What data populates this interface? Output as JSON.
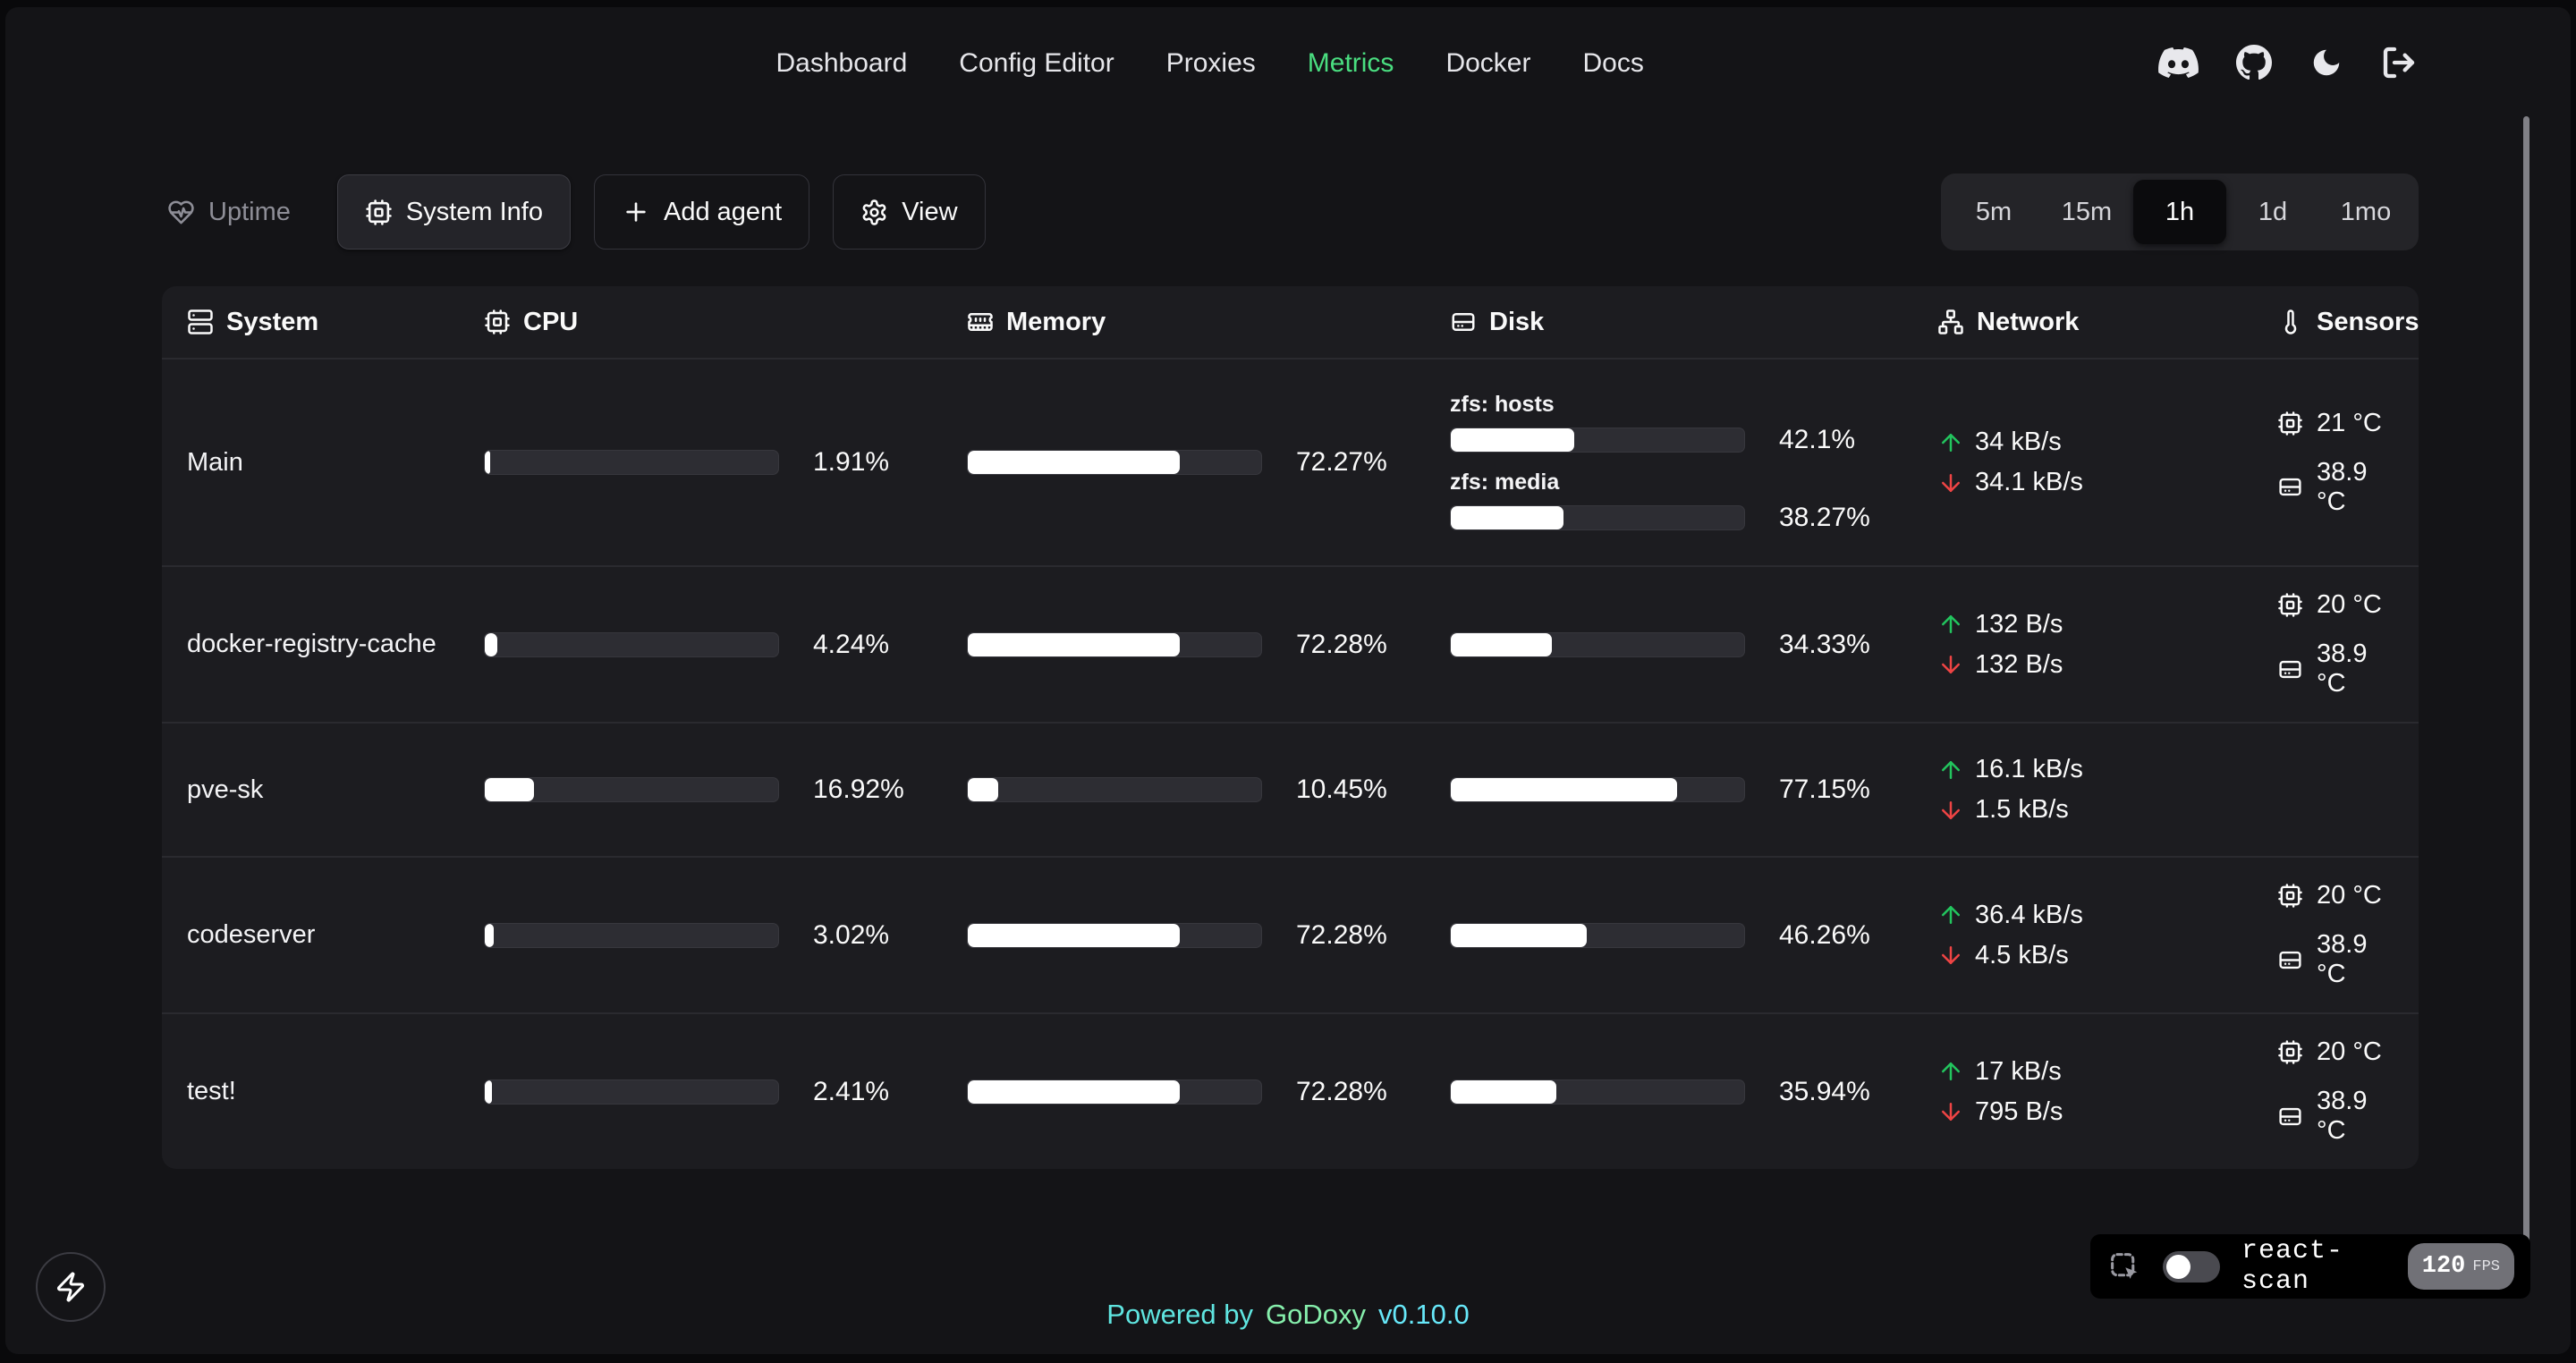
{
  "nav": {
    "items": [
      {
        "label": "Dashboard",
        "active": false
      },
      {
        "label": "Config Editor",
        "active": false
      },
      {
        "label": "Proxies",
        "active": false
      },
      {
        "label": "Metrics",
        "active": true
      },
      {
        "label": "Docker",
        "active": false
      },
      {
        "label": "Docs",
        "active": false
      }
    ],
    "icon_buttons": [
      {
        "name": "discord-icon"
      },
      {
        "name": "github-icon"
      },
      {
        "name": "moon-icon"
      },
      {
        "name": "logout-icon"
      }
    ]
  },
  "toolbar": {
    "uptime_label": "Uptime",
    "system_info_label": "System Info",
    "add_agent_label": "Add agent",
    "view_label": "View",
    "time_ranges": [
      {
        "label": "5m",
        "selected": false
      },
      {
        "label": "15m",
        "selected": false
      },
      {
        "label": "1h",
        "selected": true
      },
      {
        "label": "1d",
        "selected": false
      },
      {
        "label": "1mo",
        "selected": false
      }
    ]
  },
  "table": {
    "columns": [
      {
        "label": "System",
        "icon": "server-icon"
      },
      {
        "label": "CPU",
        "icon": "cpu-icon"
      },
      {
        "label": "Memory",
        "icon": "memory-icon"
      },
      {
        "label": "Disk",
        "icon": "hard-drive-icon"
      },
      {
        "label": "Network",
        "icon": "network-icon"
      },
      {
        "label": "Sensors",
        "icon": "thermometer-icon"
      }
    ],
    "rows": [
      {
        "system": "Main",
        "cpu": {
          "percent": 1.91,
          "label": "1.91%"
        },
        "memory": {
          "percent": 72.27,
          "label": "72.27%"
        },
        "disks": [
          {
            "name": "zfs: hosts",
            "percent": 42.1,
            "label": "42.1%"
          },
          {
            "name": "zfs: media",
            "percent": 38.27,
            "label": "38.27%"
          }
        ],
        "network": {
          "upload": "34 kB/s",
          "download": "34.1 kB/s"
        },
        "sensors": [
          {
            "icon": "cpu-icon",
            "label": "21 °C"
          },
          {
            "icon": "hard-drive-icon",
            "label": "38.9 °C"
          }
        ]
      },
      {
        "system": "docker-registry-cache",
        "cpu": {
          "percent": 4.24,
          "label": "4.24%"
        },
        "memory": {
          "percent": 72.28,
          "label": "72.28%"
        },
        "disks": [
          {
            "percent": 34.33,
            "label": "34.33%"
          }
        ],
        "network": {
          "upload": "132 B/s",
          "download": "132 B/s"
        },
        "sensors": [
          {
            "icon": "cpu-icon",
            "label": "20 °C"
          },
          {
            "icon": "hard-drive-icon",
            "label": "38.9 °C"
          }
        ]
      },
      {
        "system": "pve-sk",
        "cpu": {
          "percent": 16.92,
          "label": "16.92%"
        },
        "memory": {
          "percent": 10.45,
          "label": "10.45%"
        },
        "disks": [
          {
            "percent": 77.15,
            "label": "77.15%"
          }
        ],
        "network": {
          "upload": "16.1 kB/s",
          "download": "1.5 kB/s"
        },
        "sensors": []
      },
      {
        "system": "codeserver",
        "cpu": {
          "percent": 3.02,
          "label": "3.02%"
        },
        "memory": {
          "percent": 72.28,
          "label": "72.28%"
        },
        "disks": [
          {
            "percent": 46.26,
            "label": "46.26%"
          }
        ],
        "network": {
          "upload": "36.4 kB/s",
          "download": "4.5 kB/s"
        },
        "sensors": [
          {
            "icon": "cpu-icon",
            "label": "20 °C"
          },
          {
            "icon": "hard-drive-icon",
            "label": "38.9 °C"
          }
        ]
      },
      {
        "system": "test!",
        "cpu": {
          "percent": 2.41,
          "label": "2.41%"
        },
        "memory": {
          "percent": 72.28,
          "label": "72.28%"
        },
        "disks": [
          {
            "percent": 35.94,
            "label": "35.94%"
          }
        ],
        "network": {
          "upload": "17 kB/s",
          "download": "795 B/s"
        },
        "sensors": [
          {
            "icon": "cpu-icon",
            "label": "20 °C"
          },
          {
            "icon": "hard-drive-icon",
            "label": "38.9 °C"
          }
        ]
      }
    ]
  },
  "footer": {
    "powered_by": "Powered by",
    "brand": "GoDoxy",
    "version": "v0.10.0"
  },
  "react_scan": {
    "label": "react-scan",
    "fps": "120",
    "fps_unit": "FPS",
    "toggle_on": false
  },
  "colors": {
    "accent_green": "#4ade80",
    "upload_green": "#22c55e",
    "download_red": "#ef4444",
    "footer_cyan": "#67e8f9",
    "footer_green": "#86efac"
  }
}
